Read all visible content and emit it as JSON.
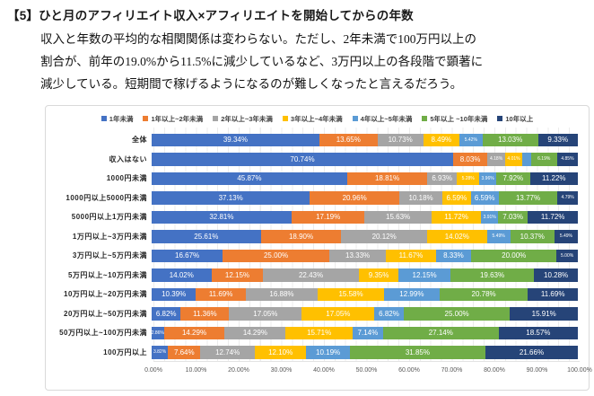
{
  "page": {
    "title": "【5】ひと月のアフィリエイト収入×アフィリエイトを開始してからの年数",
    "paragraph_lines": [
      "収入と年数の平均的な相関関係は変わらない。ただし、2年未満で100万円以上の",
      "割合が、前年の19.0%から11.5%に減少しているなど、3万円以上の各段階で顕著に",
      "減少している。短期間で稼げるようになるのが難しくなったと言えるだろう。"
    ]
  },
  "chart_data": {
    "type": "bar",
    "orientation": "horizontal-stacked",
    "unit": "%",
    "xlim": [
      0,
      100
    ],
    "grid": "vertical-minor-2.5pct",
    "legend_position": "top",
    "x_ticks": [
      "0.00%",
      "10.00%",
      "20.00%",
      "30.00%",
      "40.00%",
      "50.00%",
      "60.00%",
      "70.00%",
      "80.00%",
      "90.00%",
      "100.00%"
    ],
    "categories": [
      "全体",
      "収入はない",
      "1000円未満",
      "1000円以上5000円未満",
      "5000円以上1万円未満",
      "1万円以上~3万円未満",
      "3万円以上~5万円未満",
      "5万円以上~10万円未満",
      "10万円以上~20万円未満",
      "20万円以上~50万円未満",
      "50万円以上~100万円未満",
      "100万円以上"
    ],
    "series": [
      {
        "name": "1年未満",
        "color": "#4472C4",
        "values": [
          39.34,
          70.74,
          45.87,
          37.13,
          32.81,
          25.61,
          16.67,
          14.02,
          10.39,
          6.82,
          2.86,
          3.82
        ]
      },
      {
        "name": "1年以上~2年未満",
        "color": "#ED7D31",
        "values": [
          13.65,
          8.03,
          18.81,
          20.96,
          17.19,
          18.9,
          25.0,
          12.15,
          11.69,
          11.36,
          14.29,
          7.64
        ]
      },
      {
        "name": "2年以上~3年未満",
        "color": "#A5A5A5",
        "values": [
          10.73,
          4.18,
          6.93,
          10.18,
          15.63,
          20.12,
          13.33,
          22.43,
          16.88,
          17.05,
          14.29,
          12.74
        ]
      },
      {
        "name": "3年以上~4年未満",
        "color": "#FFC000",
        "values": [
          8.49,
          4.01,
          5.28,
          6.59,
          11.72,
          14.02,
          11.67,
          9.35,
          15.58,
          17.05,
          15.71,
          12.1
        ]
      },
      {
        "name": "4年以上~5年未満",
        "color": "#5B9BD5",
        "values": [
          5.42,
          2.0,
          3.96,
          6.59,
          3.91,
          5.49,
          8.33,
          12.15,
          12.99,
          6.82,
          7.14,
          10.19
        ]
      },
      {
        "name": "5年以上 ~10年未満",
        "color": "#70AD47",
        "values": [
          13.03,
          6.19,
          7.92,
          13.77,
          7.03,
          10.37,
          20.0,
          19.63,
          20.78,
          25.0,
          27.14,
          31.85
        ]
      },
      {
        "name": "10年以上",
        "color": "#264478",
        "values": [
          9.33,
          4.85,
          11.22,
          4.79,
          11.72,
          5.49,
          5.0,
          10.28,
          11.69,
          15.91,
          18.57,
          21.66
        ]
      }
    ],
    "label_format": "0.00%",
    "label_hide_below_pct": 2.5,
    "label_small_below_pct": 6.5
  }
}
